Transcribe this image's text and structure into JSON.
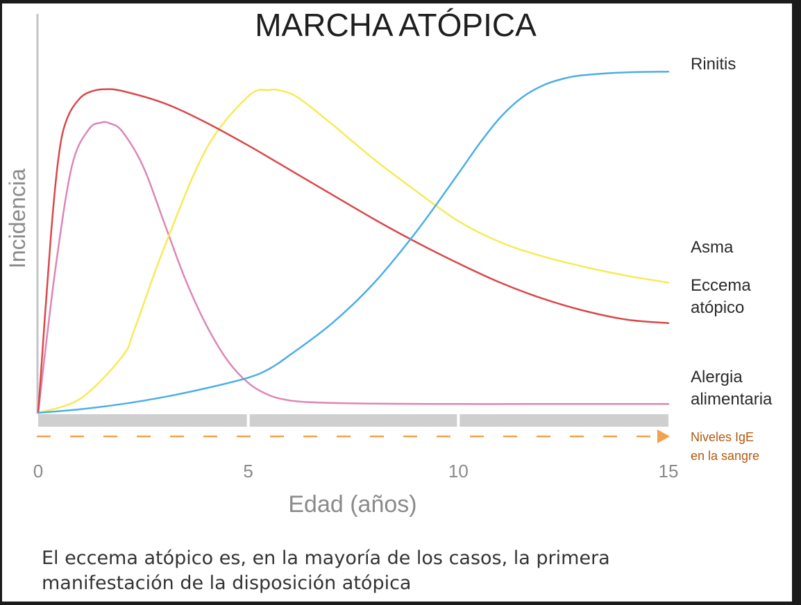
{
  "chart_data": {
    "type": "line",
    "title": "MARCHA ATÓPICA",
    "xlabel": "Edad (años)",
    "ylabel": "Incidencia",
    "xlim": [
      0,
      15
    ],
    "ylim": [
      0,
      100
    ],
    "xticks": [
      "0",
      "5",
      "10",
      "15"
    ],
    "grid": false,
    "colors": {
      "Rinitis": "#4aaee6",
      "Asma": "#f7ea55",
      "Eccema atópico": "#d9474a",
      "Alergia alimentaria": "#de85b4",
      "Niveles IgE en la sangre": "#f2a24a"
    },
    "series": [
      {
        "name": "Rinitis",
        "label_lines": [
          "Rinitis"
        ],
        "x": [
          0,
          1,
          2,
          3,
          4,
          5,
          5.5,
          6,
          7,
          8,
          9,
          10,
          10.5,
          11,
          11.5,
          12,
          12.5,
          13,
          14,
          15
        ],
        "y": [
          0,
          1,
          2.5,
          4.5,
          7,
          10,
          12.5,
          16.5,
          25.5,
          37,
          51.5,
          68,
          76.5,
          84,
          89.5,
          93,
          95,
          96,
          96.8,
          97
        ]
      },
      {
        "name": "Asma",
        "label_lines": [
          "Asma"
        ],
        "x": [
          0,
          1,
          2,
          2.3,
          3,
          4,
          5,
          5.5,
          5.8,
          6.2,
          7,
          8,
          9,
          10,
          11,
          12,
          13,
          14,
          15
        ],
        "y": [
          0,
          4,
          16,
          24,
          47,
          75,
          90,
          91.8,
          91.5,
          89.5,
          82,
          72,
          63,
          54.5,
          48.5,
          44.5,
          41.5,
          39,
          37
        ]
      },
      {
        "name": "Eccema atópico",
        "label_lines": [
          "Eccema",
          "atópico"
        ],
        "x": [
          0,
          0.3,
          0.5,
          0.7,
          1,
          1.3,
          1.6,
          2,
          3,
          4,
          5,
          6,
          7,
          8,
          9,
          10,
          11,
          12,
          13,
          14,
          15
        ],
        "y": [
          0,
          50,
          74,
          84,
          89.5,
          91.5,
          92,
          91.5,
          88,
          82.5,
          76,
          69,
          62,
          55,
          48.5,
          42.5,
          37,
          32.5,
          29,
          26.5,
          25.5
        ]
      },
      {
        "name": "Alergia alimentaria",
        "label_lines": [
          "Alergia",
          "alimentaria"
        ],
        "x": [
          0,
          0.4,
          0.8,
          1.2,
          1.5,
          1.7,
          2,
          2.5,
          3,
          3.5,
          4,
          4.5,
          5,
          5.5,
          6,
          6.5,
          7,
          8,
          10,
          12,
          15
        ],
        "y": [
          0,
          40,
          70,
          80.5,
          82.5,
          82.3,
          80,
          70,
          54,
          38,
          25,
          15,
          8.5,
          5,
          3.5,
          3,
          2.8,
          2.6,
          2.5,
          2.5,
          2.5
        ]
      }
    ],
    "annotation": {
      "name": "Niveles IgE en la sangre",
      "label_lines": [
        "Niveles IgE",
        "en la sangre"
      ]
    }
  },
  "caption_lines": [
    "El eccema atópico es, en la mayoría de los casos, la primera",
    "manifestación de la disposición atópica"
  ]
}
